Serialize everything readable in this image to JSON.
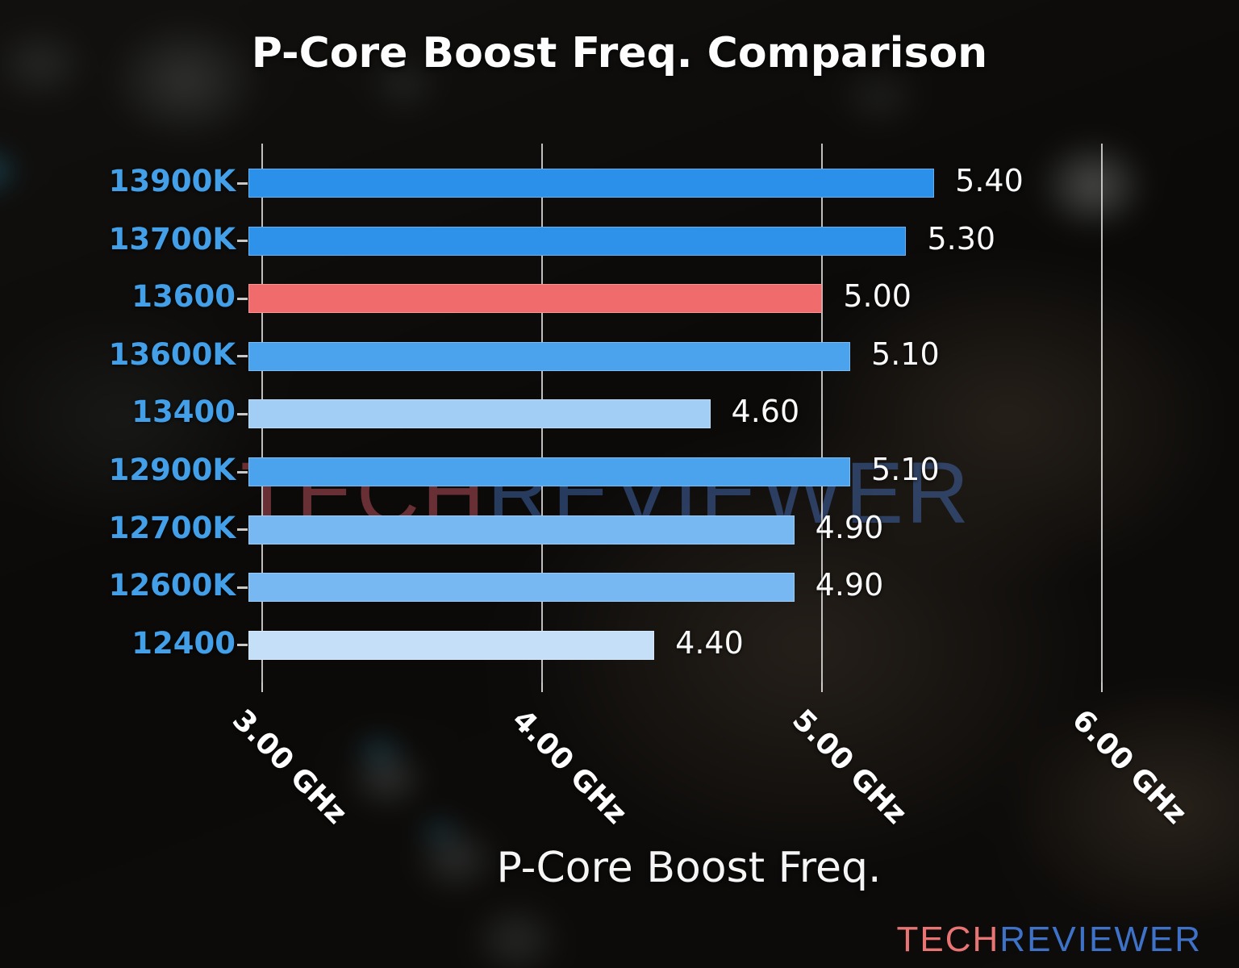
{
  "title": "P-Core Boost Freq. Comparison",
  "watermark": {
    "part1": "TECH",
    "part2": "REVIEWER"
  },
  "logo": {
    "part1": "TECH",
    "part2": "REVIEWER",
    "part1_color": "#e97474",
    "part2_color": "#3d72c8"
  },
  "chart_data": {
    "type": "bar",
    "orientation": "horizontal",
    "title": "P-Core Boost Freq. Comparison",
    "xlabel": "P-Core Boost Freq.",
    "ylabel": "",
    "categories": [
      "13900K",
      "13700K",
      "13600",
      "13600K",
      "13400",
      "12900K",
      "12700K",
      "12600K",
      "12400"
    ],
    "values": [
      5.4,
      5.3,
      5.0,
      5.1,
      4.6,
      5.1,
      4.9,
      4.9,
      4.4
    ],
    "value_labels": [
      "5.40",
      "5.30",
      "5.00",
      "5.10",
      "4.60",
      "5.10",
      "4.90",
      "4.90",
      "4.40"
    ],
    "bar_colors": [
      "#2b90ea",
      "#2f92ea",
      "#f06b6b",
      "#4aa3ec",
      "#a2cef5",
      "#4aa3ec",
      "#77b8f2",
      "#77b8f2",
      "#c5dff9"
    ],
    "highlighted_category": "13600",
    "highlight_color": "#f06b6b",
    "category_label_color": "#429fe8",
    "x_ticks": [
      "3.00 GHz",
      "4.00 GHz",
      "5.00 GHz",
      "6.00 GHz"
    ],
    "x_tick_values": [
      3.0,
      4.0,
      5.0,
      6.0
    ],
    "xlim": [
      2.95,
      6.1
    ],
    "grid": true,
    "gridline_color": "#dedede",
    "value_unit": "GHz"
  }
}
